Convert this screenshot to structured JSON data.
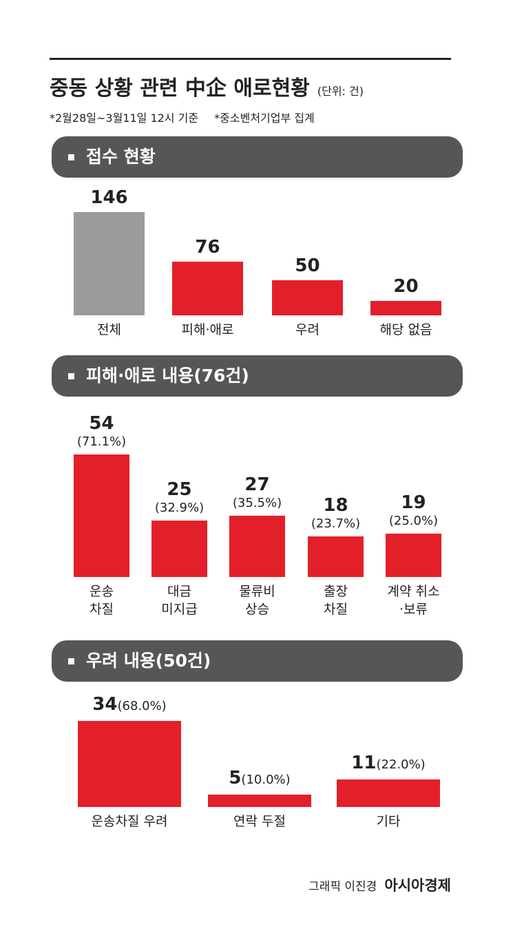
{
  "header": {
    "title": "중동 상황 관련 中企 애로현황",
    "unit": "(단위: 건)",
    "notes": [
      "*2월28일~3월11일 12시 기준",
      "*중소벤처기업부 집계"
    ]
  },
  "chart_data": [
    {
      "type": "bar",
      "title": "접수 현황",
      "categories": [
        "전체",
        "피해·애로",
        "우려",
        "해당 없음"
      ],
      "values": [
        146,
        76,
        50,
        20
      ],
      "colors": [
        "#9a9b9d",
        "#e3202a",
        "#e3202a",
        "#e3202a"
      ]
    },
    {
      "type": "bar",
      "title": "피해·애로 내용(76건)",
      "categories": [
        "운송\n차질",
        "대금\n미지급",
        "물류비\n상승",
        "출장\n차질",
        "계약 취소\n·보류"
      ],
      "values": [
        54,
        25,
        27,
        18,
        19
      ],
      "share_labels": [
        "(71.1%)",
        "(32.9%)",
        "(35.5%)",
        "(23.7%)",
        "(25.0%)"
      ],
      "color": "#e3202a"
    },
    {
      "type": "bar",
      "title": "우려 내용(50건)",
      "categories": [
        "운송차질 우려",
        "연락 두절",
        "기타"
      ],
      "values": [
        34,
        5,
        11
      ],
      "share_labels": [
        "(68.0%)",
        "(10.0%)",
        "(22.0%)"
      ],
      "color": "#e3202a"
    }
  ],
  "footer": {
    "credit": "그래픽 이진경",
    "source": "아시아경제"
  }
}
